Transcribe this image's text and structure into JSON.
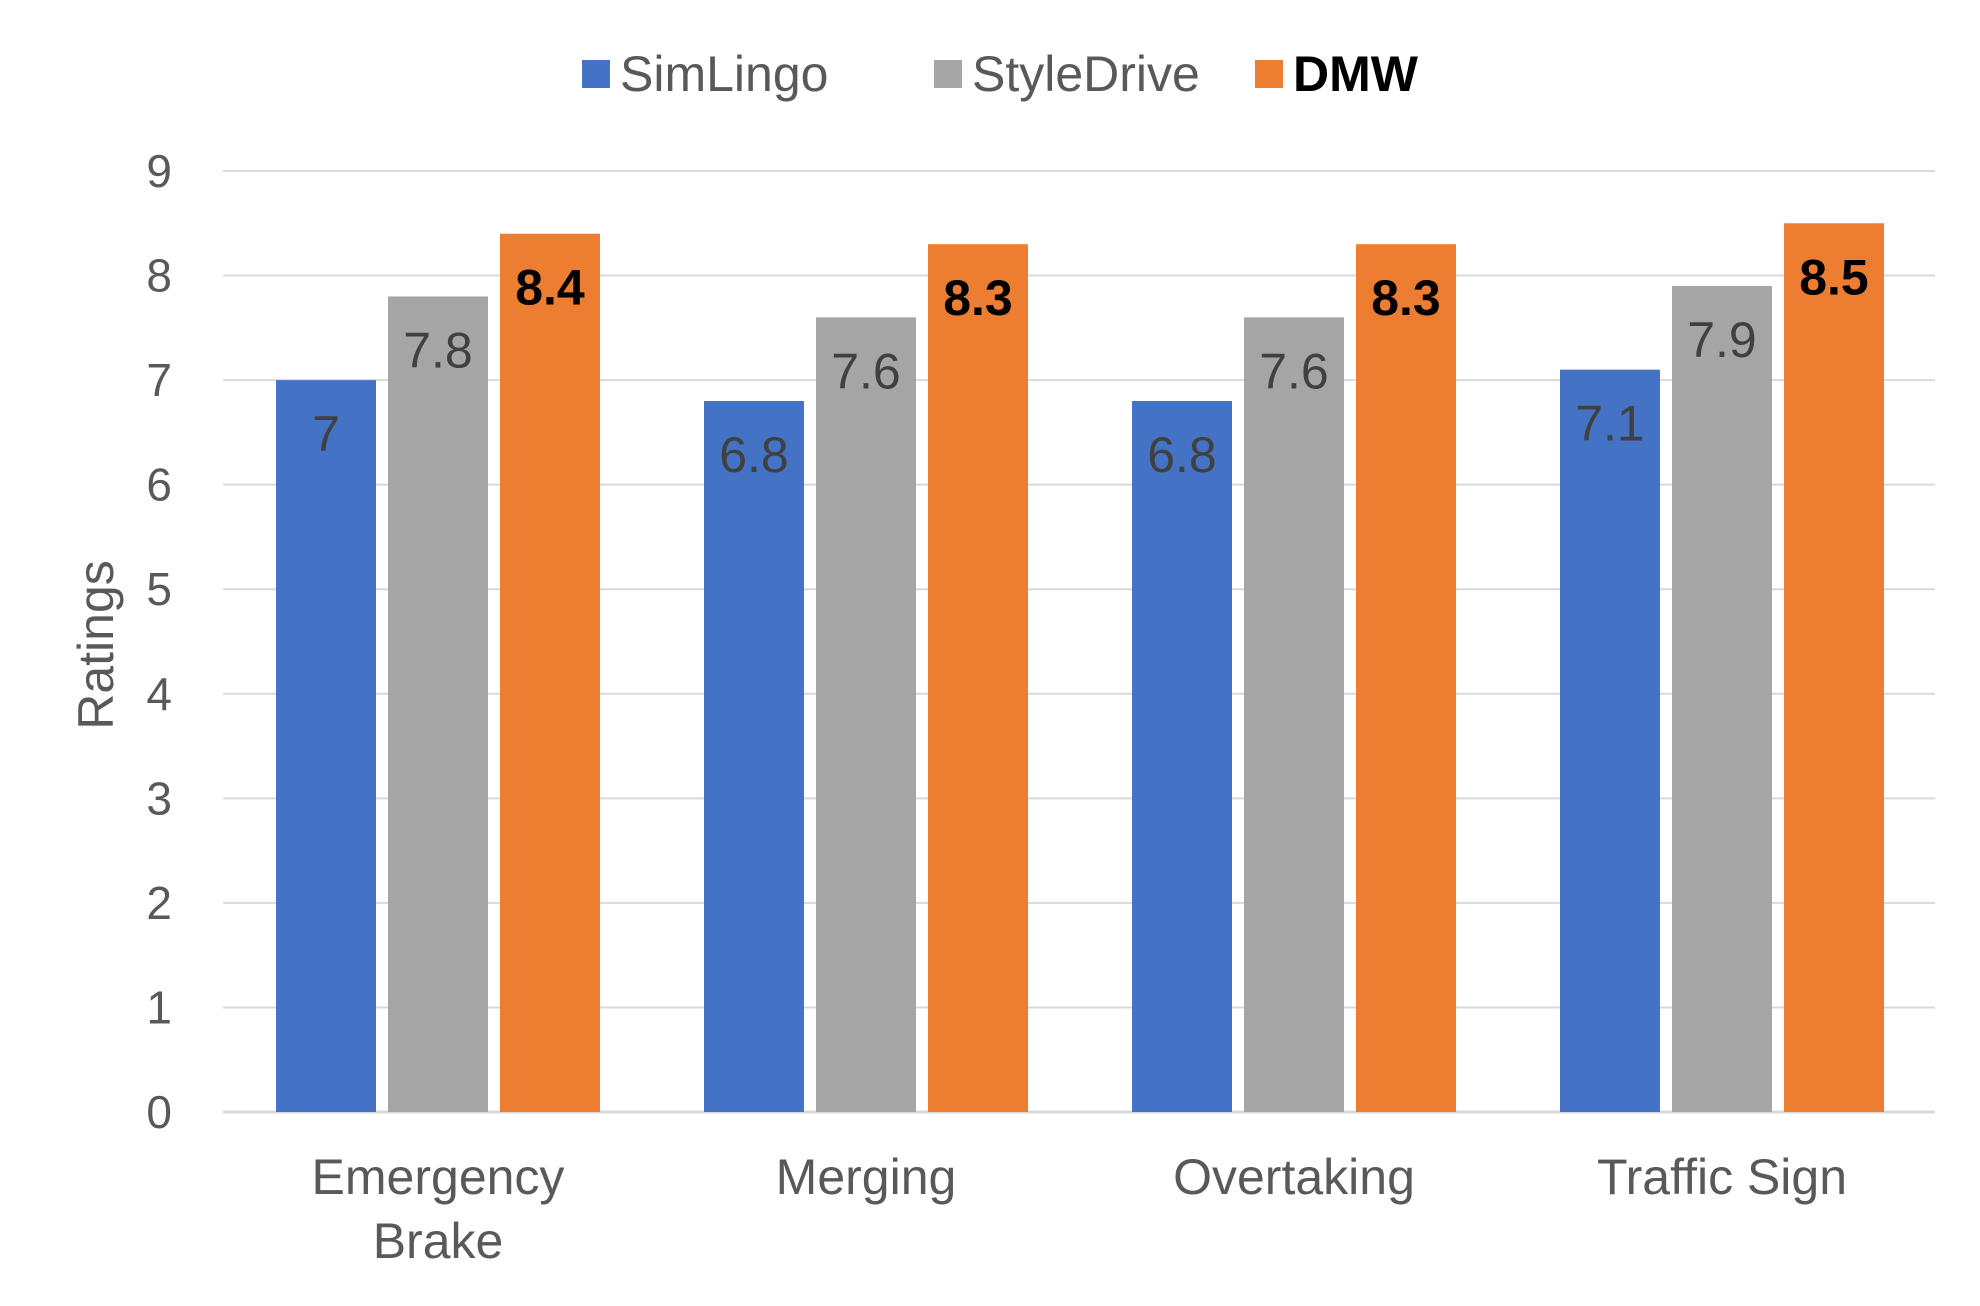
{
  "chart_data": {
    "type": "bar",
    "title": "",
    "xlabel": "",
    "ylabel": "Ratings",
    "ylim": [
      0,
      9
    ],
    "yticks": [
      "0",
      "1",
      "2",
      "3",
      "4",
      "5",
      "6",
      "7",
      "8",
      "9"
    ],
    "grid": true,
    "legend_position": "top",
    "categories": [
      [
        "Emergency",
        "Brake"
      ],
      [
        "Merging"
      ],
      [
        "Overtaking"
      ],
      [
        "Traffic Sign"
      ]
    ],
    "series": [
      {
        "name": "SimLingo",
        "color": "#4472C4",
        "bold": false,
        "values": [
          7,
          6.8,
          6.8,
          7.1
        ],
        "labels": [
          "7",
          "6.8",
          "6.8",
          "7.1"
        ]
      },
      {
        "name": "StyleDrive",
        "color": "#A5A5A5",
        "bold": false,
        "values": [
          7.8,
          7.6,
          7.6,
          7.9
        ],
        "labels": [
          "7.8",
          "7.6",
          "7.6",
          "7.9"
        ]
      },
      {
        "name": "DMW",
        "color": "#ED7D31",
        "bold": true,
        "values": [
          8.4,
          8.3,
          8.3,
          8.5
        ],
        "labels": [
          "8.4",
          "8.3",
          "8.3",
          "8.5"
        ]
      }
    ],
    "gridline_color": "#D9D9D9"
  }
}
